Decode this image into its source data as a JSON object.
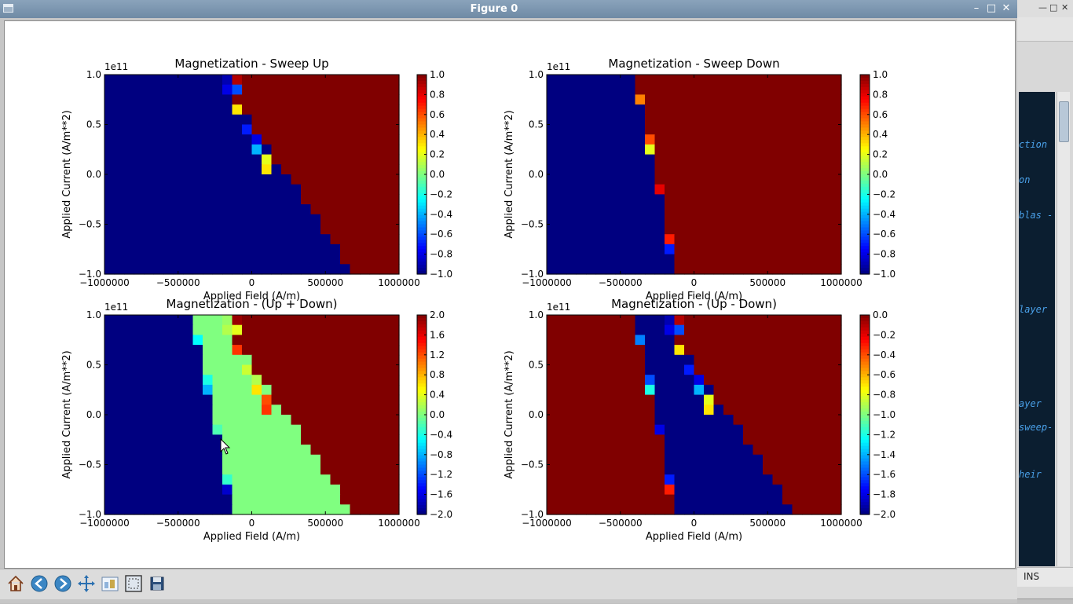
{
  "window": {
    "title": "Figure 0"
  },
  "background_app": {
    "status_text": "INS",
    "code_fragments": [
      "ction",
      "on",
      "blas -",
      "layer",
      "ayer",
      "sweep-",
      "heir"
    ]
  },
  "toolbar": {
    "buttons": [
      "home",
      "back",
      "forward",
      "pan",
      "configure-subplots",
      "zoom-to-rect",
      "save"
    ]
  },
  "chart_data": [
    {
      "type": "heatmap",
      "title": "Magnetization - Sweep Up",
      "xlabel": "Applied Field (A/m)",
      "ylabel": "Applied Current (A/m**2)",
      "xlim": [
        -1000000,
        1000000
      ],
      "ylim": [
        -1.0,
        1.0
      ],
      "y_scale_label": "1e11",
      "xticks": [
        "−1000000",
        "−500000",
        "0",
        "500000",
        "1000000"
      ],
      "yticks": [
        "1.0",
        "0.5",
        "0.0",
        "−0.5",
        "−1.0"
      ],
      "colorbar": {
        "min": -1.0,
        "max": 1.0,
        "ticks": [
          "1.0",
          "0.8",
          "0.6",
          "0.4",
          "0.2",
          "0.0",
          "−0.2",
          "−0.4",
          "−0.6",
          "−0.8",
          "−1.0"
        ]
      },
      "grid": {
        "rows": 20,
        "cols": 30,
        "boundary_col_top": 12,
        "boundary_col_bottom": 25
      }
    },
    {
      "type": "heatmap",
      "title": "Magnetization - Sweep Down",
      "xlabel": "Applied Field (A/m)",
      "ylabel": "Applied Current (A/m**2)",
      "xlim": [
        -1000000,
        1000000
      ],
      "ylim": [
        -1.0,
        1.0
      ],
      "y_scale_label": "1e11",
      "xticks": [
        "−1000000",
        "−500000",
        "0",
        "500000",
        "1000000"
      ],
      "yticks": [
        "1.0",
        "0.5",
        "0.0",
        "−0.5",
        "−1.0"
      ],
      "colorbar": {
        "min": -1.0,
        "max": 1.0,
        "ticks": [
          "1.0",
          "0.8",
          "0.6",
          "0.4",
          "0.2",
          "0.0",
          "−0.2",
          "−0.4",
          "−0.6",
          "−0.8",
          "−1.0"
        ]
      },
      "grid": {
        "rows": 20,
        "cols": 30,
        "boundary_col_top": 9,
        "boundary_col_bottom": 13
      }
    },
    {
      "type": "heatmap",
      "title": "Magnetization - (Up + Down)",
      "xlabel": "Applied Field (A/m)",
      "ylabel": "Applied Current (A/m**2)",
      "xlim": [
        -1000000,
        1000000
      ],
      "ylim": [
        -1.0,
        1.0
      ],
      "y_scale_label": "1e11",
      "xticks": [
        "−1000000",
        "−500000",
        "0",
        "500000",
        "1000000"
      ],
      "yticks": [
        "1.0",
        "0.5",
        "0.0",
        "−0.5",
        "−1.0"
      ],
      "colorbar": {
        "min": -2.0,
        "max": 2.0,
        "ticks": [
          "2.0",
          "1.6",
          "1.2",
          "0.8",
          "0.4",
          "0.0",
          "−0.4",
          "−0.8",
          "−1.2",
          "−1.6",
          "−2.0"
        ]
      },
      "grid": {
        "rows": 20,
        "cols": 30
      }
    },
    {
      "type": "heatmap",
      "title": "Magnetization - (Up - Down)",
      "xlabel": "Applied Field (A/m)",
      "ylabel": "Applied Current (A/m**2)",
      "xlim": [
        -1000000,
        1000000
      ],
      "ylim": [
        -1.0,
        1.0
      ],
      "y_scale_label": "1e11",
      "xticks": [
        "−1000000",
        "−500000",
        "0",
        "500000",
        "1000000"
      ],
      "yticks": [
        "1.0",
        "0.5",
        "0.0",
        "−0.5",
        "−1.0"
      ],
      "colorbar": {
        "min": -2.0,
        "max": 0.0,
        "ticks": [
          "0.0",
          "−0.2",
          "−0.4",
          "−0.6",
          "−0.8",
          "−1.0",
          "−1.2",
          "−1.4",
          "−1.6",
          "−1.8",
          "−2.0"
        ]
      },
      "grid": {
        "rows": 20,
        "cols": 30
      }
    }
  ]
}
